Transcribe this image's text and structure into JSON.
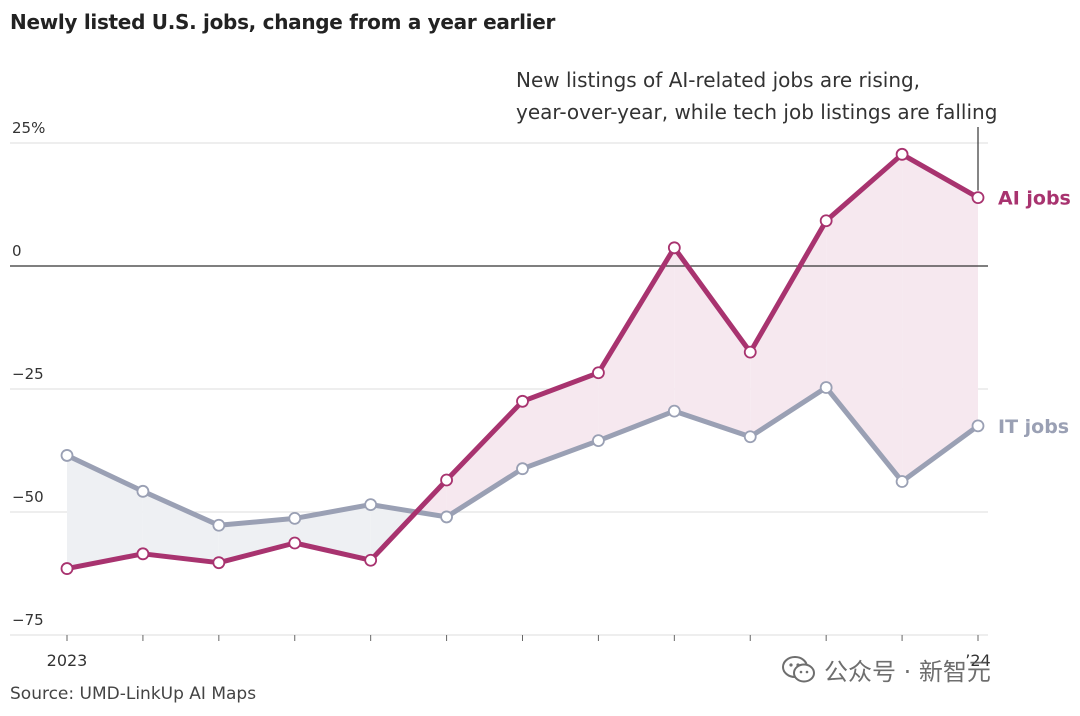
{
  "title": "Newly listed U.S. jobs, change from a year earlier",
  "source": "Source: UMD-LinkUp AI Maps",
  "watermark": {
    "text": "公众号 · 新智元",
    "icon": "wechat-icon"
  },
  "colors": {
    "ai": "#a8336f",
    "it": "#9aa0b4",
    "ai_fill": "#f6e8ef",
    "it_fill": "#eef0f3",
    "grid": "#dddddd",
    "zero": "#333333"
  },
  "chart_data": {
    "type": "line",
    "title": "Newly listed U.S. jobs, change from a year earlier",
    "ylim": [
      -75,
      25
    ],
    "yticks": [
      25,
      0,
      -25,
      -50,
      -75
    ],
    "ytick_labels": [
      "25%",
      "0",
      "−25",
      "−50",
      "−75"
    ],
    "x": [
      1,
      2,
      3,
      4,
      5,
      6,
      7,
      8,
      9,
      10,
      11,
      12,
      13
    ],
    "xtick_labels": [
      {
        "x": 1,
        "label": "2023"
      },
      {
        "x": 13,
        "label": "’24"
      }
    ],
    "series": [
      {
        "name": "AI jobs",
        "values": [
          -61.5,
          -58.5,
          -60.3,
          -56.3,
          -59.8,
          -43.5,
          -27.5,
          -21.7,
          3.7,
          -17.5,
          9.2,
          22.7,
          13.9
        ]
      },
      {
        "name": "IT jobs",
        "values": [
          -38.5,
          -45.8,
          -52.7,
          -51.3,
          -48.5,
          -51.0,
          -41.2,
          -35.5,
          -29.5,
          -34.7,
          -24.7,
          -43.8,
          -32.5
        ]
      }
    ],
    "annotation": {
      "line1": "New listings of AI-related jobs are rising,",
      "line2": "year-over-year, while tech job listings are falling"
    },
    "grid": true,
    "legend": "direct labels at right"
  }
}
